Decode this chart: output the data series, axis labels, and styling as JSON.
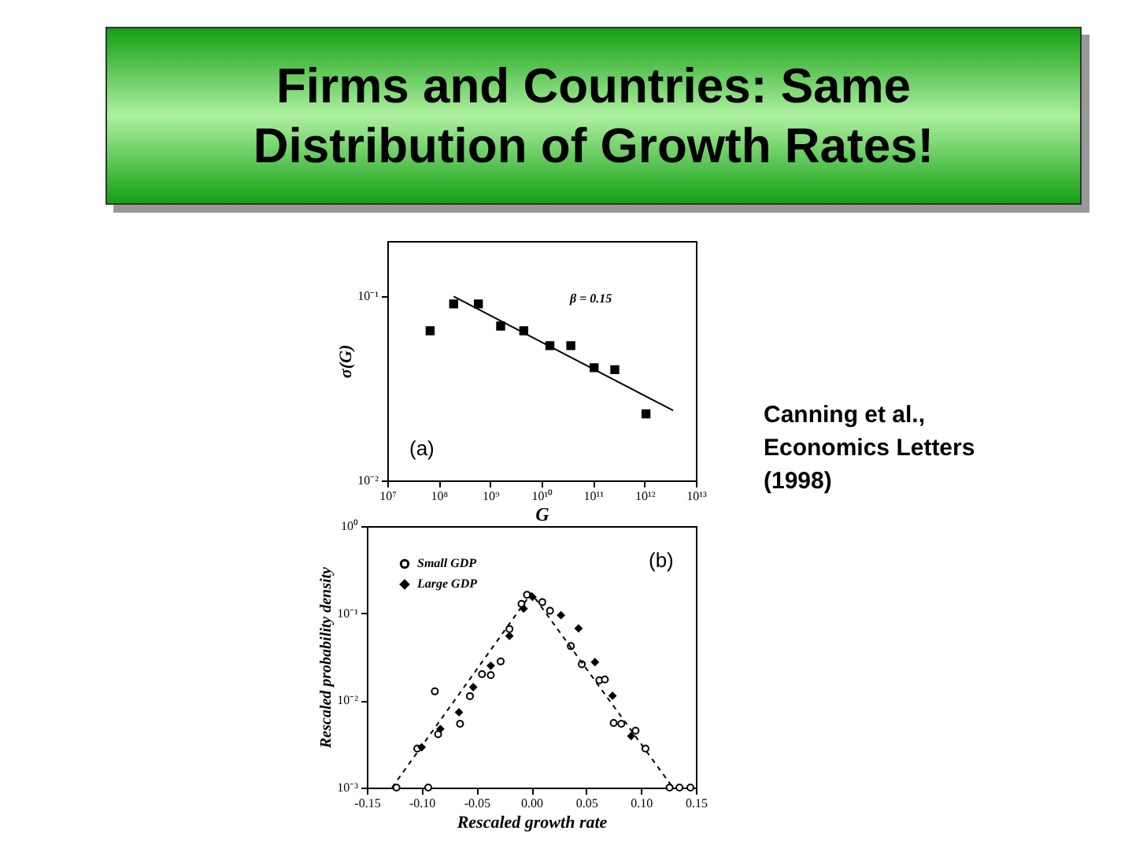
{
  "chart_data": [
    {
      "type": "scatter",
      "title": "Firms and Countries: Same Distribution of Growth Rates!",
      "xlabel": "G",
      "ylabel": "σ(G)",
      "log": "xy",
      "xlim": [
        10000000.0,
        10000000000000.0
      ],
      "xticks": [
        {
          "value": 10000000.0,
          "label": "10⁷"
        },
        {
          "value": 100000000.0,
          "label": "10⁸"
        },
        {
          "value": 1000000000.0,
          "label": "10⁹"
        },
        {
          "value": 10000000000.0,
          "label": "10¹⁰"
        },
        {
          "value": 100000000000.0,
          "label": "10¹¹"
        },
        {
          "value": 1000000000000.0,
          "label": "10¹²"
        },
        {
          "value": 10000000000000.0,
          "label": "10¹³"
        }
      ],
      "ylim": [
        0.01,
        0.2
      ],
      "yticks": [
        {
          "value": 0.01,
          "label": "10⁻²"
        },
        {
          "value": 0.1,
          "label": "10⁻¹"
        }
      ],
      "series": [
        {
          "color": "#000000",
          "marker": "square",
          "x": [
            68000000.0,
            195000000.0,
            590000000.0,
            1600000000.0,
            4500000000.0,
            14500000000.0,
            37000000000.0,
            105000000000.0,
            265000000000.0,
            1070000000000.0
          ],
          "values": [
            0.065,
            0.091,
            0.091,
            0.069,
            0.065,
            0.054,
            0.054,
            0.041,
            0.04,
            0.023
          ]
        },
        {
          "type": "line",
          "color": "#000000",
          "line_style": "solid",
          "x": [
            195000000.0,
            3600000000000.0
          ],
          "values": [
            0.1,
            0.024
          ]
        }
      ],
      "annotations": [
        "(a)",
        "β = 0.15",
        "Canning et al., Economics Letters (1998)"
      ]
    },
    {
      "type": "scatter",
      "xlabel": "Rescaled growth rate",
      "ylabel": "Rescaled probability density",
      "log": "y",
      "legend": "top left",
      "xlim": [
        -0.15,
        0.15
      ],
      "xticks": [
        {
          "value": -0.15,
          "label": "-0.15"
        },
        {
          "value": -0.1,
          "label": "-0.10"
        },
        {
          "value": -0.05,
          "label": "-0.05"
        },
        {
          "value": 0,
          "label": "0.00"
        },
        {
          "value": 0.05,
          "label": "0.05"
        },
        {
          "value": 0.1,
          "label": "0.10"
        },
        {
          "value": 0.15,
          "label": "0.15"
        }
      ],
      "ylim": [
        0.001,
        1
      ],
      "yticks": [
        {
          "value": 0.001,
          "label": "10⁻³"
        },
        {
          "value": 0.01,
          "label": "10⁻²"
        },
        {
          "value": 0.1,
          "label": "10⁻¹"
        },
        {
          "value": 1,
          "label": "10⁰"
        }
      ],
      "series": [
        {
          "name": "Small GDP",
          "color": "#000000",
          "marker": "circle",
          "x": [
            -0.123,
            -0.104,
            -0.094,
            -0.088,
            -0.085,
            -0.065,
            -0.056,
            -0.045,
            -0.037,
            -0.028,
            -0.02,
            -0.009,
            -0.004,
            0.01,
            0.017,
            0.036,
            0.046,
            0.062,
            0.067,
            0.075,
            0.082,
            0.095,
            0.104,
            0.126,
            0.135,
            0.145
          ],
          "values": [
            0.001,
            0.0028,
            0.001,
            0.0127,
            0.0041,
            0.0054,
            0.0112,
            0.02,
            0.0195,
            0.028,
            0.066,
            0.128,
            0.163,
            0.134,
            0.107,
            0.042,
            0.026,
            0.017,
            0.0174,
            0.0055,
            0.0054,
            0.0045,
            0.0028,
            0.001,
            0.001,
            0.001
          ]
        },
        {
          "name": "Large GDP",
          "color": "#000000",
          "marker": "diamond",
          "x": [
            -0.1,
            -0.083,
            -0.066,
            -0.053,
            -0.037,
            -0.02,
            -0.007,
            0.001,
            0.027,
            0.043,
            0.058,
            0.074,
            0.091
          ],
          "values": [
            0.0029,
            0.0047,
            0.0073,
            0.0142,
            0.025,
            0.055,
            0.113,
            0.154,
            0.095,
            0.067,
            0.0275,
            0.0113,
            0.0039
          ]
        },
        {
          "type": "line",
          "color": "#000000",
          "line_style": "dashed",
          "x": [
            -0.127,
            0,
            0.129
          ],
          "values": [
            0.001,
            0.17,
            0.001
          ]
        }
      ],
      "annotations": [
        "(b)"
      ]
    }
  ]
}
